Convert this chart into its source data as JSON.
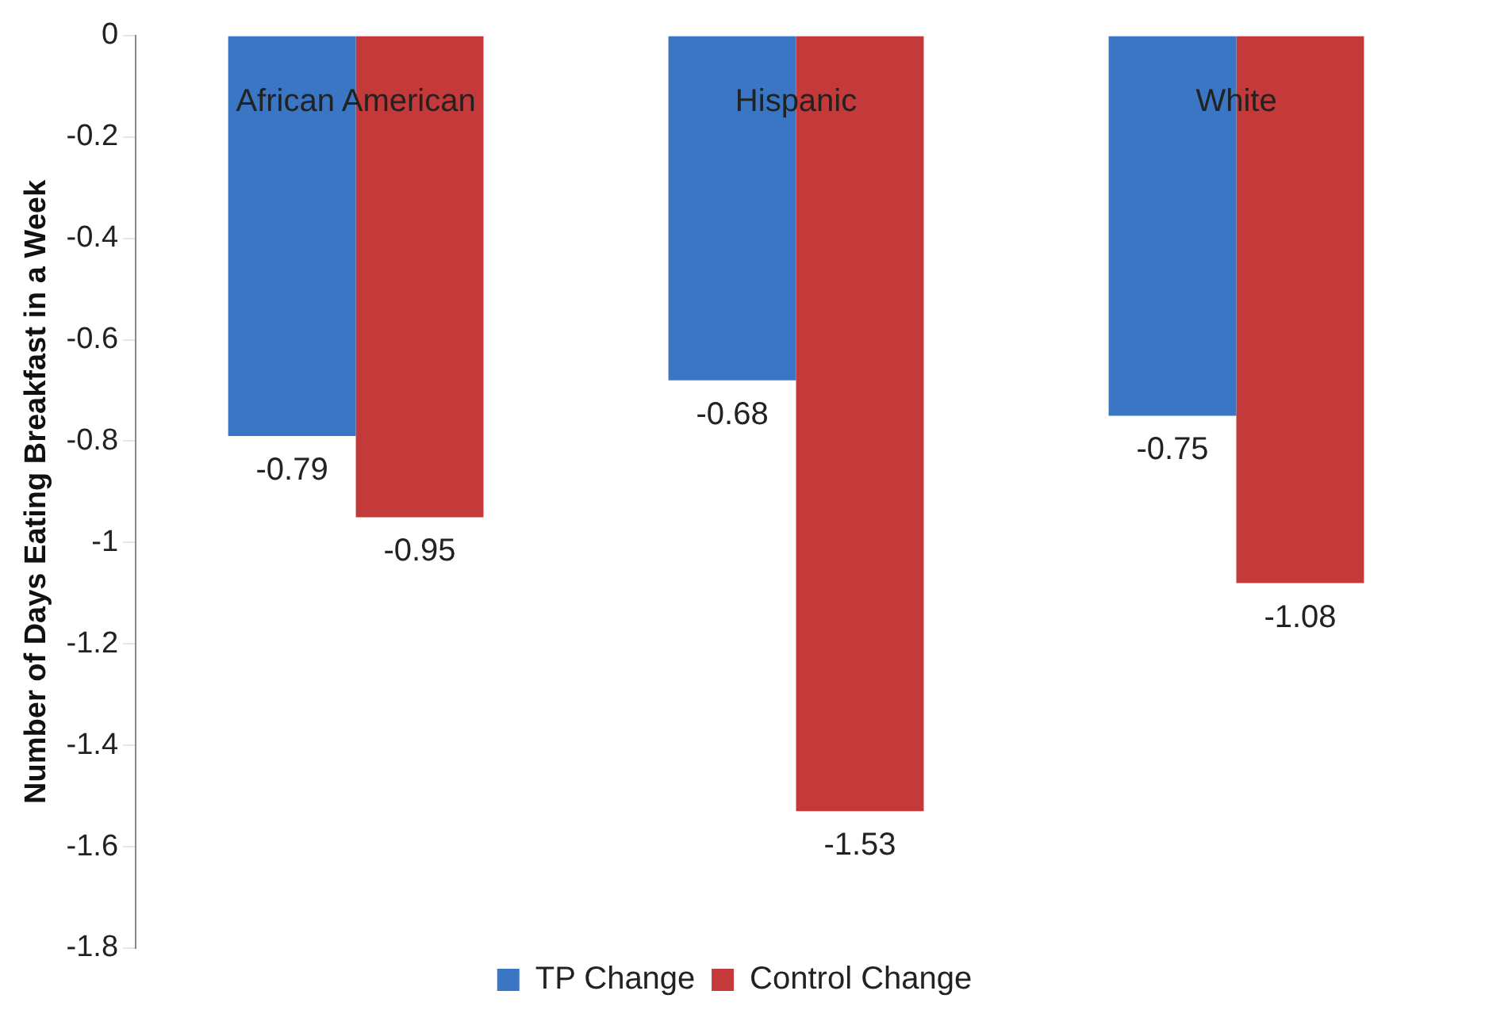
{
  "chart_data": {
    "type": "bar",
    "ylabel": "Number of Days Eating Breakfast in a Week",
    "categories": [
      "African American",
      "Hispanic",
      "White"
    ],
    "series": [
      {
        "name": "TP Change",
        "color": "#3a76c4",
        "values": [
          -0.79,
          -0.68,
          -0.75
        ]
      },
      {
        "name": "Control Change",
        "color": "#c43a3a",
        "values": [
          -0.95,
          -1.53,
          -1.08
        ]
      }
    ],
    "ylim": [
      -1.8,
      0
    ],
    "yticks": [
      0,
      -0.2,
      -0.4,
      -0.6,
      -0.8,
      -1,
      -1.2,
      -1.4,
      -1.6,
      -1.8
    ],
    "data_labels": true,
    "grid": false,
    "legend": "bottom"
  }
}
